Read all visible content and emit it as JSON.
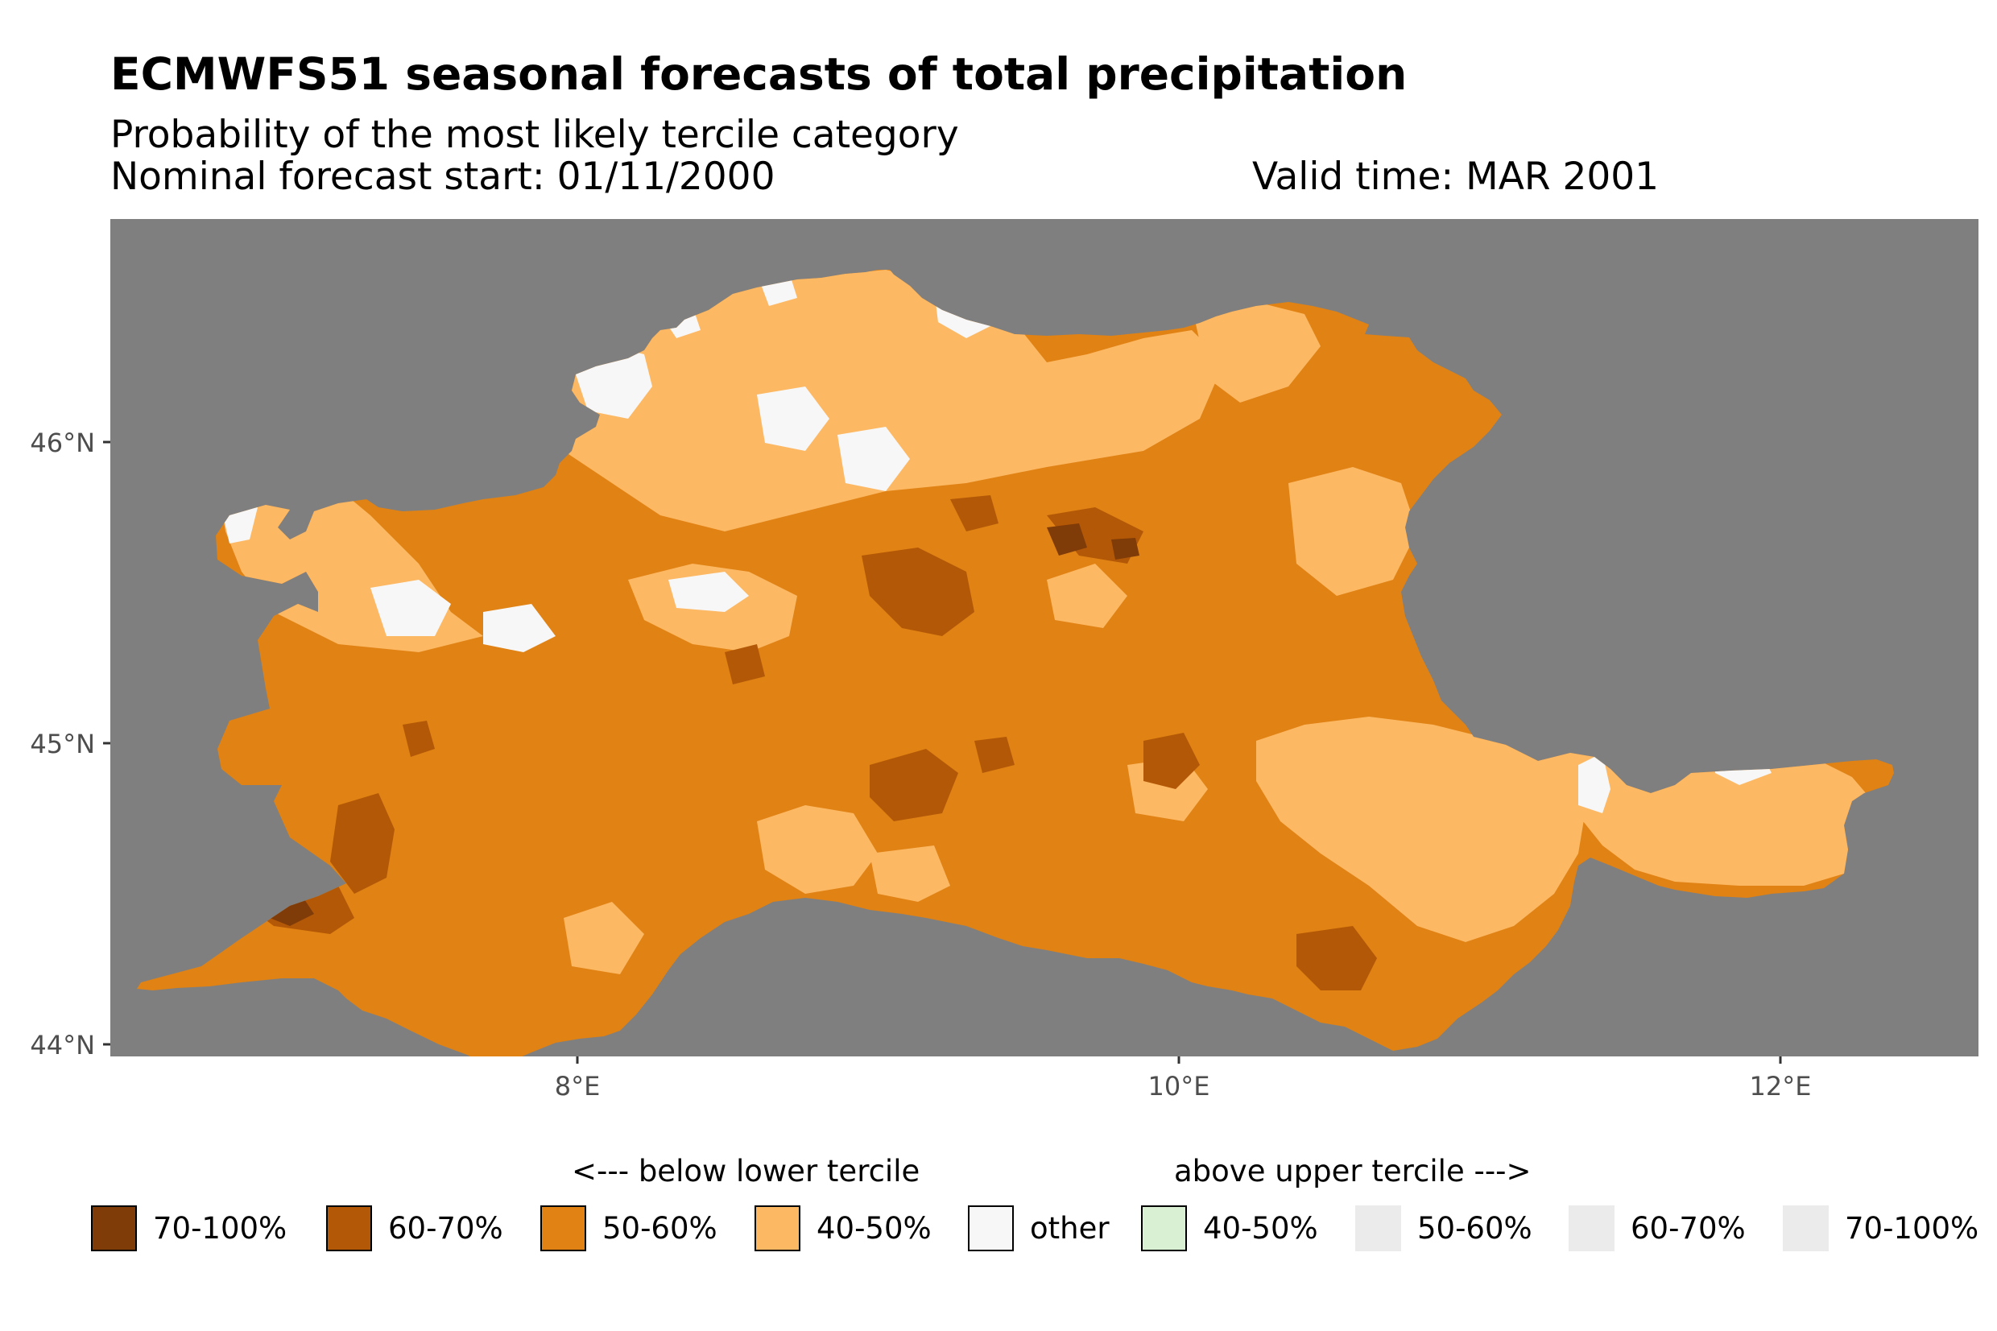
{
  "title": "ECMWFS51 seasonal forecasts of total precipitation",
  "subtitle": "Probability of the most likely tercile category",
  "forecast_start": "Nominal forecast start: 01/11/2000",
  "valid_time": "Valid time: MAR 2001",
  "map": {
    "region": "Po river basin, northern Italy",
    "background_color": "#7f7f7f",
    "dominant_category": "50-60%",
    "lat_range": [
      44.0,
      46.7
    ],
    "lon_range": [
      6.5,
      12.7
    ],
    "y_ticks": [
      {
        "lat": 46,
        "label": "46°N"
      },
      {
        "lat": 45,
        "label": "45°N"
      },
      {
        "lat": 44,
        "label": "44°N"
      }
    ],
    "x_ticks": [
      {
        "lon": 8,
        "label": "8°E"
      },
      {
        "lon": 10,
        "label": "10°E"
      },
      {
        "lon": 12,
        "label": "12°E"
      }
    ]
  },
  "legend": {
    "below_heading": "<--- below lower tercile",
    "above_heading": "above upper tercile --->",
    "items": [
      {
        "label": "70-100%",
        "color": "#7f3b08",
        "border": true
      },
      {
        "label": "60-70%",
        "color": "#b35806",
        "border": true
      },
      {
        "label": "50-60%",
        "color": "#e08214",
        "border": true
      },
      {
        "label": "40-50%",
        "color": "#fdb863",
        "border": true
      },
      {
        "label": "other",
        "color": "#f7f7f7",
        "border": true
      },
      {
        "label": "40-50%",
        "color": "#d9f0d3",
        "border": true
      },
      {
        "label": "50-60%",
        "color": "#ebebeb",
        "border": false
      },
      {
        "label": "60-70%",
        "color": "#ebebeb",
        "border": false
      },
      {
        "label": "70-100%",
        "color": "#ebebeb",
        "border": false
      }
    ]
  }
}
